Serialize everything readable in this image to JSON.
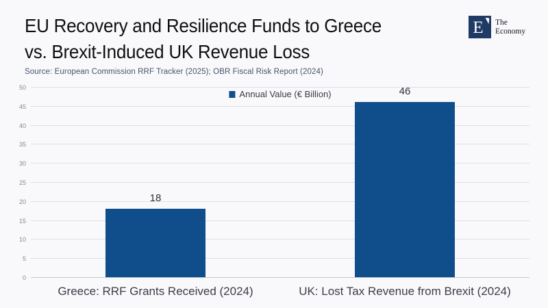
{
  "header": {
    "title_line1": "EU Recovery and Resilience Funds to Greece",
    "title_line2": "vs. Brexit-Induced UK Revenue Loss",
    "source": "Source:  European Commission RRF Tracker (2025); OBR Fiscal Risk Report (2024)"
  },
  "brand": {
    "mark": "E",
    "name_line1": "The",
    "name_line2": "Economy"
  },
  "chart_data": {
    "type": "bar",
    "title": "EU Recovery and Resilience Funds to Greece vs. Brexit-Induced UK Revenue Loss",
    "legend_label": "Annual Value (€ Billion)",
    "legend_position": "top-center",
    "categories": [
      "Greece: RRF Grants Received (2024)",
      "UK: Lost Tax Revenue from Brexit (2024)"
    ],
    "values": [
      18,
      46
    ],
    "data_labels": [
      "18",
      "46"
    ],
    "xlabel": "",
    "ylabel": "",
    "ylim": [
      0,
      50
    ],
    "ytick_step": 5,
    "grid": true,
    "colors": {
      "bar": "#0F4E8A",
      "grid": "#DDE0E6",
      "baseline": "#C6C9D0",
      "background": "#F9F9FC",
      "logo_box": "#1F3A64",
      "source_text": "#44546A"
    }
  }
}
